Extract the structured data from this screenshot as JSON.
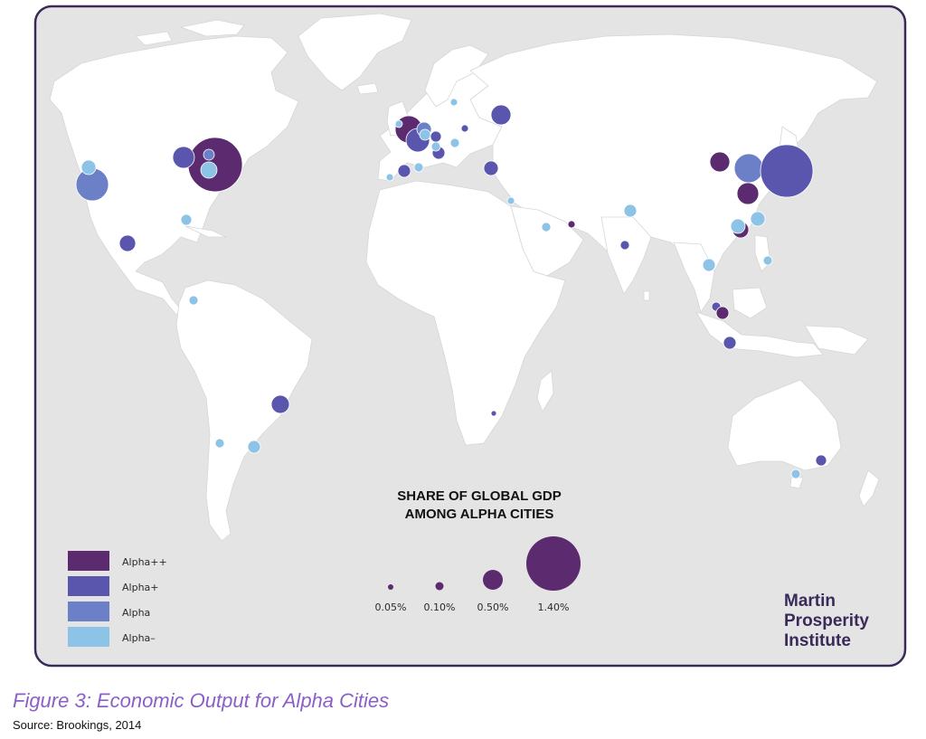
{
  "figure": {
    "caption": "Figure 3: Economic Output for Alpha Cities",
    "source": "Source: Brookings, 2014"
  },
  "legend": {
    "title_line1": "SHARE OF GLOBAL GDP",
    "title_line2": "AMONG ALPHA CITIES",
    "classes": [
      {
        "label": "Alpha++",
        "color": "#5c2a6e"
      },
      {
        "label": "Alpha+",
        "color": "#5a56ad"
      },
      {
        "label": "Alpha",
        "color": "#6c80c7"
      },
      {
        "label": "Alpha–",
        "color": "#8ec3e8"
      }
    ],
    "size_scale": [
      {
        "label": "0.05%",
        "value": 0.05
      },
      {
        "label": "0.10%",
        "value": 0.1
      },
      {
        "label": "0.50%",
        "value": 0.5
      },
      {
        "label": "1.40%",
        "value": 1.4
      }
    ],
    "size_color": "#5c2a6e"
  },
  "logo": {
    "line1": "Martin",
    "line2": "Prosperity",
    "line3": "Institute"
  },
  "colors": {
    "ocean": "#e4e4e4",
    "land": "#ffffff",
    "frame": "#3a2a5a"
  }
}
